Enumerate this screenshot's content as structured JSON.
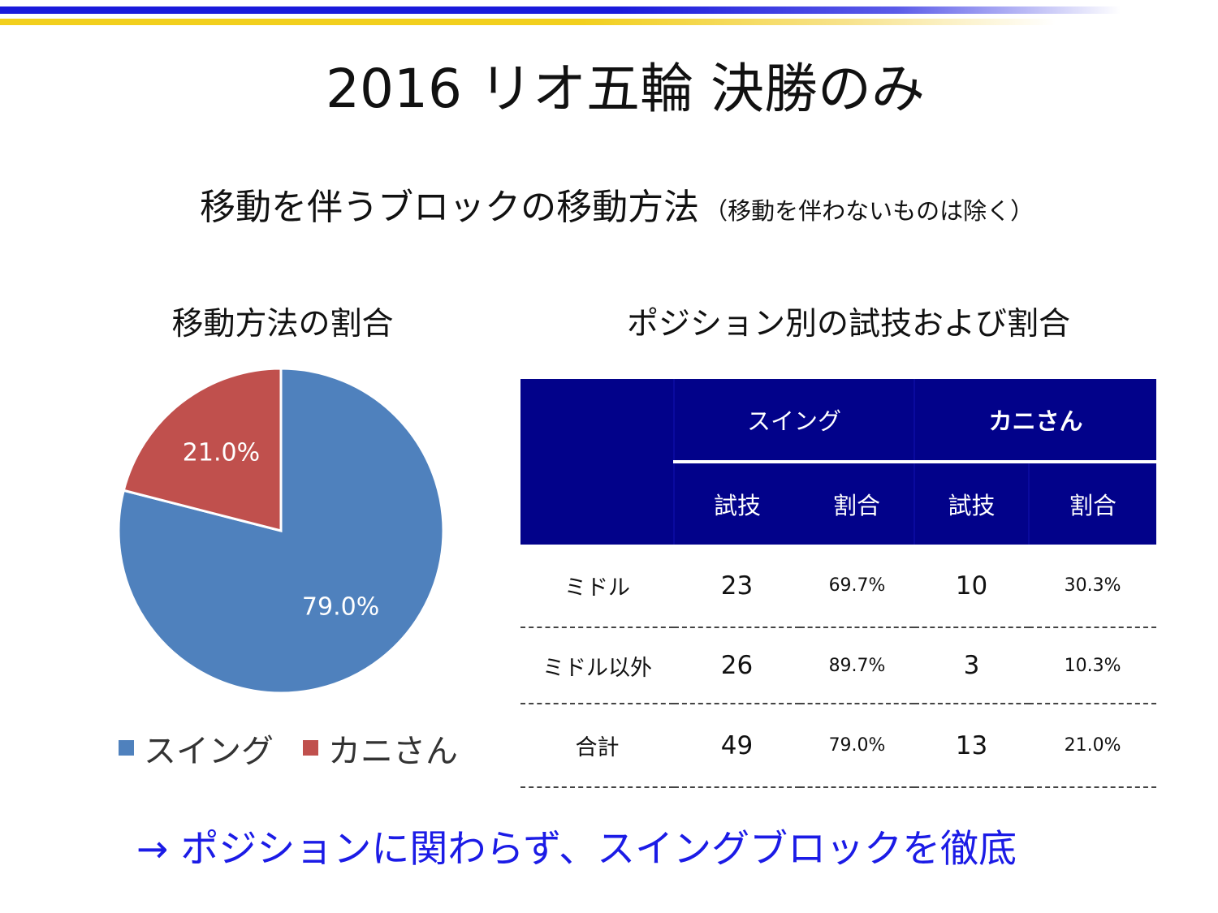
{
  "title": "2016 リオ五輪 決勝のみ",
  "subtitle": {
    "main": "移動を伴うブロックの移動方法",
    "note": "（移動を伴わないものは除く）"
  },
  "pie_title": "移動方法の割合",
  "table_title": "ポジション別の試技および割合",
  "colors": {
    "swing": "#4f81bd",
    "crab": "#c0504d",
    "header_bg": "#02028a",
    "conclusion": "#1b1be6"
  },
  "chart_data": [
    {
      "type": "pie",
      "title": "移動方法の割合",
      "labels": [
        "スイング",
        "カニさん"
      ],
      "values": [
        79.0,
        21.0
      ],
      "data_labels": [
        "79.0%",
        "21.0%"
      ],
      "colors": [
        "#4f81bd",
        "#c0504d"
      ],
      "legend": "bottom"
    },
    {
      "type": "table",
      "title": "ポジション別の試技および割合",
      "group_headers": [
        "スイング",
        "カニさん"
      ],
      "sub_headers": [
        "試技",
        "割合",
        "試技",
        "割合"
      ],
      "rows": [
        {
          "label": "ミドル",
          "swing_trials": "23",
          "swing_ratio": "69.7%",
          "crab_trials": "10",
          "crab_ratio": "30.3%"
        },
        {
          "label": "ミドル以外",
          "swing_trials": "26",
          "swing_ratio": "89.7%",
          "crab_trials": "3",
          "crab_ratio": "10.3%"
        },
        {
          "label": "合計",
          "swing_trials": "49",
          "swing_ratio": "79.0%",
          "crab_trials": "13",
          "crab_ratio": "21.0%"
        }
      ]
    }
  ],
  "conclusion": "→ ポジションに関わらず、スイングブロックを徹底"
}
